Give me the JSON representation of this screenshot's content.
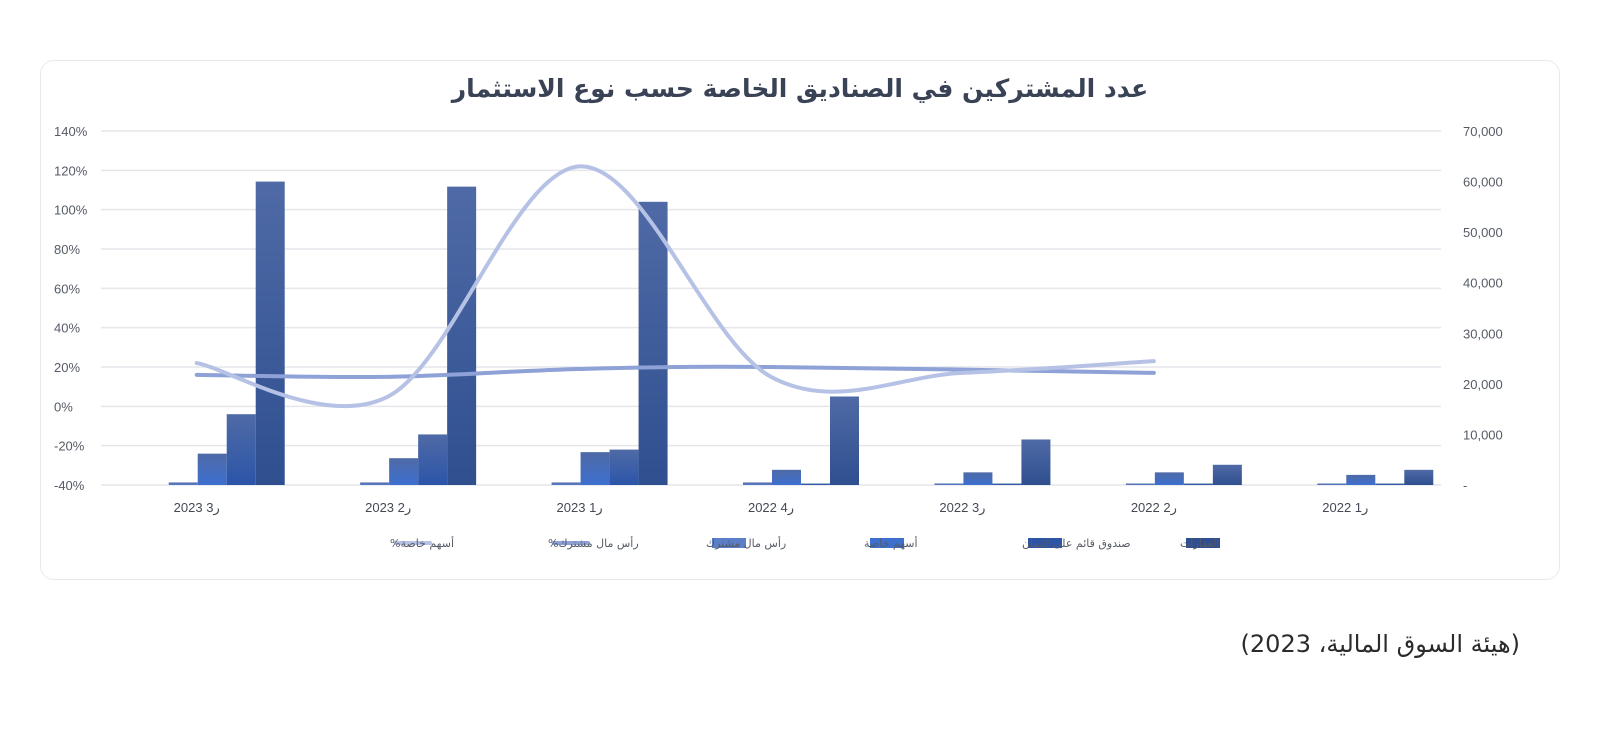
{
  "source_note": "(هيئة السوق المالية، 2023)",
  "chart_data": {
    "type": "bar",
    "title": "عدد المشتركين في الصناديق الخاصة حسب نوع الاستثمار",
    "categories": [
      "ر1 2022",
      "ر2 2022",
      "ر3 2022",
      "ر4 2022",
      "ر1 2023",
      "ر2 2023",
      "ر3 2023"
    ],
    "x_axis_direction": "right-to-left",
    "ylim_left": [
      -40,
      140
    ],
    "left_ticks": [
      "140%",
      "120%",
      "100%",
      "80%",
      "60%",
      "40%",
      "20%",
      "0%",
      "-20%",
      "-40%"
    ],
    "ylim_right": [
      0,
      70000
    ],
    "right_ticks": [
      "70,000",
      "60,000",
      "50,000",
      "40,000",
      "30,000",
      "20,000",
      "10,000",
      "-"
    ],
    "grid": true,
    "legend_position": "bottom",
    "bar_series": [
      {
        "name": "العقارات",
        "color": "#2f4f8f",
        "values": [
          3000,
          4000,
          9000,
          17500,
          56000,
          59000,
          60000
        ]
      },
      {
        "name": "صندوق قائم على التمان",
        "color": "#2c55a8",
        "values": [
          0,
          0,
          0,
          0,
          7000,
          10000,
          14000
        ]
      },
      {
        "name": "أسهم خاصة",
        "color": "#3d6fcf",
        "values": [
          2000,
          2500,
          2500,
          3000,
          6500,
          5300,
          6200
        ]
      },
      {
        "name": "رأس مال مشترك",
        "color": "#5a7fc8",
        "values": [
          200,
          200,
          300,
          500,
          500,
          500,
          500
        ]
      }
    ],
    "line_series": [
      {
        "name": "رأس مال مشترك%",
        "color": "#8ea2d8",
        "axis": "left",
        "values": [
          null,
          17,
          null,
          20,
          19,
          15,
          16
        ]
      },
      {
        "name": "أسهم خاصة%",
        "color": "#b6c1e6",
        "axis": "left",
        "values": [
          null,
          23,
          17,
          15,
          122,
          5,
          22
        ]
      }
    ]
  }
}
